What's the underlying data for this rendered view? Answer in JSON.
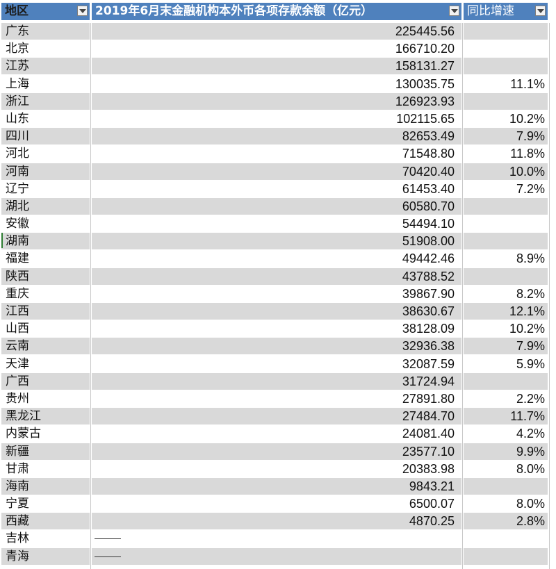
{
  "header": {
    "col_region": "地区",
    "col_balance": "2019年6月末金融机构本外币各项存款余额（亿元）",
    "col_growth": "同比增速"
  },
  "rows": [
    {
      "region": "广东",
      "balance": "225445.56",
      "growth": ""
    },
    {
      "region": "北京",
      "balance": "166710.20",
      "growth": ""
    },
    {
      "region": "江苏",
      "balance": "158131.27",
      "growth": ""
    },
    {
      "region": "上海",
      "balance": "130035.75",
      "growth": "11.1%"
    },
    {
      "region": "浙江",
      "balance": "126923.93",
      "growth": ""
    },
    {
      "region": "山东",
      "balance": "102115.65",
      "growth": "10.2%"
    },
    {
      "region": "四川",
      "balance": "82653.49",
      "growth": "7.9%"
    },
    {
      "region": "河北",
      "balance": "71548.80",
      "growth": "11.8%"
    },
    {
      "region": "河南",
      "balance": "70420.40",
      "growth": "10.0%"
    },
    {
      "region": "辽宁",
      "balance": "61453.40",
      "growth": "7.2%"
    },
    {
      "region": "湖北",
      "balance": "60580.70",
      "growth": ""
    },
    {
      "region": "安徽",
      "balance": "54494.10",
      "growth": ""
    },
    {
      "region": "湖南",
      "balance": "51908.00",
      "growth": ""
    },
    {
      "region": "福建",
      "balance": "49442.46",
      "growth": "8.9%"
    },
    {
      "region": "陕西",
      "balance": "43788.52",
      "growth": ""
    },
    {
      "region": "重庆",
      "balance": "39867.90",
      "growth": "8.2%"
    },
    {
      "region": "江西",
      "balance": "38630.67",
      "growth": "12.1%"
    },
    {
      "region": "山西",
      "balance": "38128.09",
      "growth": "10.2%"
    },
    {
      "region": "云南",
      "balance": "32936.38",
      "growth": "7.9%"
    },
    {
      "region": "天津",
      "balance": "32087.59",
      "growth": "5.9%"
    },
    {
      "region": "广西",
      "balance": "31724.94",
      "growth": ""
    },
    {
      "region": "贵州",
      "balance": "27891.80",
      "growth": "2.2%"
    },
    {
      "region": "黑龙江",
      "balance": "27484.70",
      "growth": "11.7%"
    },
    {
      "region": "内蒙古",
      "balance": "24081.40",
      "growth": "4.2%"
    },
    {
      "region": "新疆",
      "balance": "23577.10",
      "growth": "9.9%"
    },
    {
      "region": "甘肃",
      "balance": "20383.98",
      "growth": "8.0%"
    },
    {
      "region": "海南",
      "balance": "9843.21",
      "growth": ""
    },
    {
      "region": "宁夏",
      "balance": "6500.07",
      "growth": "8.0%"
    },
    {
      "region": "西藏",
      "balance": "4870.25",
      "growth": "2.8%"
    },
    {
      "region": "吉林",
      "balance": "",
      "growth": ""
    },
    {
      "region": "青海",
      "balance": "",
      "growth": ""
    }
  ],
  "colors": {
    "header_bg": "#4f81bd",
    "band_gray": "#d9d9d9",
    "active_marker": "#2e7d32"
  }
}
